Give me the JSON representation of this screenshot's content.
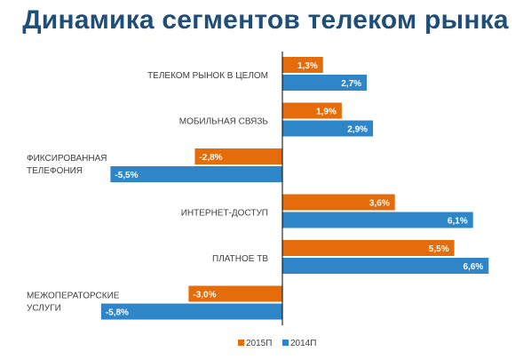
{
  "chart_data": {
    "type": "bar",
    "orientation": "horizontal",
    "title": "Динамика сегментов телеком рынка",
    "categories": [
      [
        "ТЕЛЕКОМ РЫНОК В ЦЕЛОМ"
      ],
      [
        "МОБИЛЬНАЯ СВЯЗЬ"
      ],
      [
        "ФИКСИРОВАННАЯ",
        "ТЕЛЕФОНИЯ"
      ],
      [
        "ИНТЕРНЕТ-ДОСТУП"
      ],
      [
        "ПЛАТНОЕ ТВ"
      ],
      [
        "МЕЖОПЕРАТОРСКИЕ",
        "УСЛУГИ"
      ]
    ],
    "series": [
      {
        "name": "2015П",
        "color": "#e46c0a",
        "values": [
          1.3,
          1.9,
          -2.8,
          3.6,
          5.5,
          -3.0
        ],
        "labels": [
          "1,3%",
          "1,9%",
          "-2,8%",
          "3,6%",
          "5,5%",
          "-3,0%"
        ]
      },
      {
        "name": "2014П",
        "color": "#2e86c9",
        "values": [
          2.7,
          2.9,
          -5.5,
          6.1,
          6.6,
          -5.8
        ],
        "labels": [
          "2,7%",
          "2,9%",
          "-5,5%",
          "6,1%",
          "6,6%",
          "-5,8%"
        ]
      }
    ],
    "xlim": [
      -6.0,
      7.0
    ],
    "grid": false,
    "legend": "bottom"
  }
}
